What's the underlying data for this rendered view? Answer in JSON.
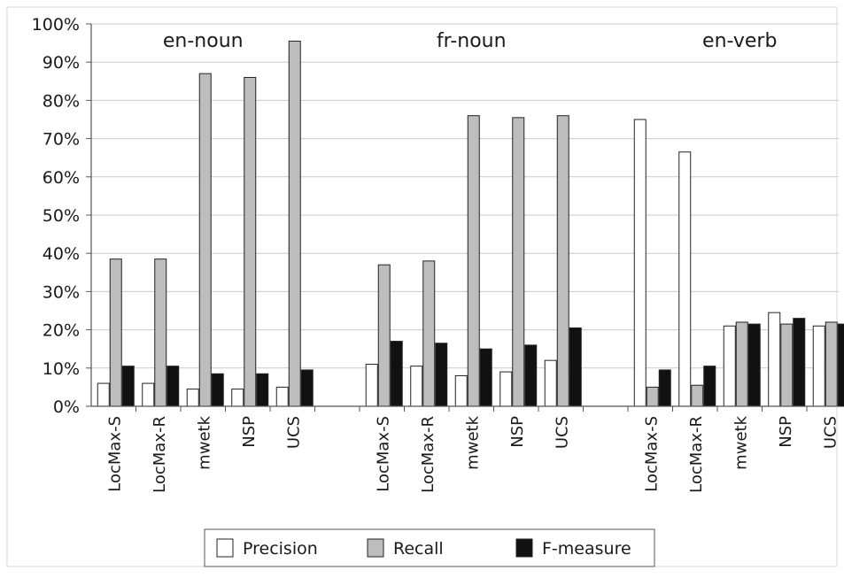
{
  "chart_data": {
    "type": "bar",
    "title": "",
    "xlabel": "",
    "ylabel": "",
    "ylim": [
      0,
      100
    ],
    "yticks": [
      "0%",
      "10%",
      "20%",
      "30%",
      "40%",
      "50%",
      "60%",
      "70%",
      "80%",
      "90%",
      "100%"
    ],
    "grid": true,
    "legend_position": "bottom",
    "groups": [
      {
        "name": "en-noun",
        "categories": [
          "LocMax-S",
          "LocMax-R",
          "mwetk",
          "NSP",
          "UCS"
        ]
      },
      {
        "name": "fr-noun",
        "categories": [
          "LocMax-S",
          "LocMax-R",
          "mwetk",
          "NSP",
          "UCS"
        ]
      },
      {
        "name": "en-verb",
        "categories": [
          "LocMax-S",
          "LocMax-R",
          "mwetk",
          "NSP",
          "UCS"
        ]
      }
    ],
    "series": [
      {
        "name": "Precision",
        "color": "#ffffff",
        "values": [
          6,
          6,
          4.5,
          4.5,
          5,
          11,
          10.5,
          8,
          9,
          12,
          75,
          66.5,
          21,
          24.5,
          21
        ]
      },
      {
        "name": "Recall",
        "color": "#bdbdbd",
        "values": [
          38.5,
          38.5,
          87,
          86,
          95.5,
          37,
          38,
          76,
          75.5,
          76,
          5,
          5.5,
          22,
          21.5,
          22
        ]
      },
      {
        "name": "F-measure",
        "color": "#111111",
        "values": [
          10.5,
          10.5,
          8.5,
          8.5,
          9.5,
          17,
          16.5,
          15,
          16,
          20.5,
          9.5,
          10.5,
          21.5,
          23,
          21.5
        ]
      }
    ]
  }
}
